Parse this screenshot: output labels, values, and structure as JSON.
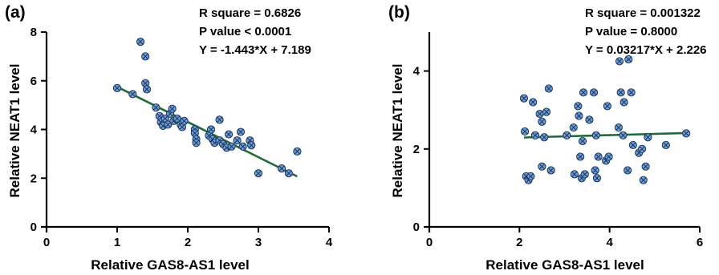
{
  "chart_data": [
    {
      "type": "scatter",
      "panel_label": "(a)",
      "stats": [
        "R square = 0.6826",
        "P value < 0.0001",
        "Y = -1.443*X + 7.189"
      ],
      "xlabel": "Relative GAS8-AS1 level",
      "ylabel": "Relative NEAT1 level",
      "xlim": [
        0,
        4
      ],
      "ylim": [
        0,
        8
      ],
      "xticks": [
        "0",
        "1",
        "2",
        "3",
        "4"
      ],
      "yticks": [
        "0",
        "2",
        "4",
        "6",
        "8"
      ],
      "grid": false,
      "legend": "none",
      "fit_line": {
        "x": [
          1.0,
          3.55
        ],
        "y": [
          5.75,
          2.07
        ]
      },
      "colors": {
        "marker_fill": "#6a9ddb",
        "marker_edge": "#1d3557",
        "fit_line": "#1f6b36"
      },
      "points": [
        {
          "x": 1.0,
          "y": 5.7
        },
        {
          "x": 1.22,
          "y": 5.45
        },
        {
          "x": 1.33,
          "y": 7.6
        },
        {
          "x": 1.4,
          "y": 7.0
        },
        {
          "x": 1.4,
          "y": 5.9
        },
        {
          "x": 1.42,
          "y": 5.65
        },
        {
          "x": 1.55,
          "y": 4.9
        },
        {
          "x": 1.6,
          "y": 4.55
        },
        {
          "x": 1.62,
          "y": 4.3
        },
        {
          "x": 1.65,
          "y": 4.15
        },
        {
          "x": 1.68,
          "y": 4.45
        },
        {
          "x": 1.72,
          "y": 4.2
        },
        {
          "x": 1.75,
          "y": 4.65
        },
        {
          "x": 1.78,
          "y": 4.85
        },
        {
          "x": 1.8,
          "y": 4.35
        },
        {
          "x": 1.85,
          "y": 4.45
        },
        {
          "x": 1.9,
          "y": 4.2
        },
        {
          "x": 1.92,
          "y": 4.1
        },
        {
          "x": 1.95,
          "y": 4.35
        },
        {
          "x": 2.1,
          "y": 4.0
        },
        {
          "x": 2.1,
          "y": 3.85
        },
        {
          "x": 2.12,
          "y": 3.6
        },
        {
          "x": 2.12,
          "y": 3.45
        },
        {
          "x": 2.3,
          "y": 3.75
        },
        {
          "x": 2.33,
          "y": 4.0
        },
        {
          "x": 2.35,
          "y": 3.6
        },
        {
          "x": 2.38,
          "y": 3.45
        },
        {
          "x": 2.45,
          "y": 4.4
        },
        {
          "x": 2.45,
          "y": 3.55
        },
        {
          "x": 2.5,
          "y": 3.4
        },
        {
          "x": 2.55,
          "y": 3.25
        },
        {
          "x": 2.58,
          "y": 3.8
        },
        {
          "x": 2.62,
          "y": 3.3
        },
        {
          "x": 2.7,
          "y": 3.55
        },
        {
          "x": 2.75,
          "y": 3.9
        },
        {
          "x": 2.78,
          "y": 3.3
        },
        {
          "x": 2.88,
          "y": 3.55
        },
        {
          "x": 2.9,
          "y": 3.35
        },
        {
          "x": 3.0,
          "y": 2.2
        },
        {
          "x": 3.33,
          "y": 2.4
        },
        {
          "x": 3.43,
          "y": 2.2
        },
        {
          "x": 3.55,
          "y": 3.1
        }
      ]
    },
    {
      "type": "scatter",
      "panel_label": "(b)",
      "stats": [
        "R square = 0.001322",
        "P value = 0.8000",
        "Y = 0.03217*X + 2.226"
      ],
      "xlabel": "Relative GAS8-AS1 level",
      "ylabel": "Relative NEAT1 level",
      "xlim": [
        0,
        6
      ],
      "ylim": [
        0,
        5
      ],
      "xticks": [
        "0",
        "2",
        "4",
        "6"
      ],
      "yticks": [
        "0",
        "2",
        "4"
      ],
      "grid": false,
      "legend": "none",
      "fit_line": {
        "x": [
          2.1,
          5.7
        ],
        "y": [
          2.294,
          2.409
        ]
      },
      "colors": {
        "marker_fill": "#6a9ddb",
        "marker_edge": "#1d3557",
        "fit_line": "#1f6b36"
      },
      "points": [
        {
          "x": 2.1,
          "y": 3.3
        },
        {
          "x": 2.12,
          "y": 2.45
        },
        {
          "x": 2.15,
          "y": 1.3
        },
        {
          "x": 2.2,
          "y": 1.2
        },
        {
          "x": 2.25,
          "y": 1.3
        },
        {
          "x": 2.3,
          "y": 3.2
        },
        {
          "x": 2.35,
          "y": 2.35
        },
        {
          "x": 2.45,
          "y": 2.9
        },
        {
          "x": 2.5,
          "y": 2.7
        },
        {
          "x": 2.5,
          "y": 1.55
        },
        {
          "x": 2.55,
          "y": 2.3
        },
        {
          "x": 2.6,
          "y": 2.95
        },
        {
          "x": 2.65,
          "y": 3.55
        },
        {
          "x": 2.7,
          "y": 1.45
        },
        {
          "x": 3.05,
          "y": 2.35
        },
        {
          "x": 3.2,
          "y": 2.55
        },
        {
          "x": 3.22,
          "y": 1.35
        },
        {
          "x": 3.3,
          "y": 3.1
        },
        {
          "x": 3.32,
          "y": 2.85
        },
        {
          "x": 3.35,
          "y": 1.8
        },
        {
          "x": 3.38,
          "y": 1.25
        },
        {
          "x": 3.4,
          "y": 2.2
        },
        {
          "x": 3.42,
          "y": 3.45
        },
        {
          "x": 3.45,
          "y": 1.35
        },
        {
          "x": 3.55,
          "y": 2.75
        },
        {
          "x": 3.65,
          "y": 3.45
        },
        {
          "x": 3.68,
          "y": 1.45
        },
        {
          "x": 3.7,
          "y": 2.35
        },
        {
          "x": 3.72,
          "y": 1.25
        },
        {
          "x": 3.75,
          "y": 1.8
        },
        {
          "x": 3.92,
          "y": 1.7
        },
        {
          "x": 3.95,
          "y": 3.1
        },
        {
          "x": 3.98,
          "y": 1.8
        },
        {
          "x": 4.22,
          "y": 4.25
        },
        {
          "x": 4.2,
          "y": 2.55
        },
        {
          "x": 4.25,
          "y": 3.45
        },
        {
          "x": 4.3,
          "y": 2.35
        },
        {
          "x": 4.32,
          "y": 3.2
        },
        {
          "x": 4.4,
          "y": 1.45
        },
        {
          "x": 4.42,
          "y": 4.3
        },
        {
          "x": 4.48,
          "y": 3.45
        },
        {
          "x": 4.52,
          "y": 2.1
        },
        {
          "x": 4.65,
          "y": 1.9
        },
        {
          "x": 4.72,
          "y": 2.0
        },
        {
          "x": 4.75,
          "y": 1.2
        },
        {
          "x": 4.8,
          "y": 1.55
        },
        {
          "x": 4.85,
          "y": 2.3
        },
        {
          "x": 5.25,
          "y": 2.1
        },
        {
          "x": 5.7,
          "y": 2.4
        }
      ]
    }
  ]
}
